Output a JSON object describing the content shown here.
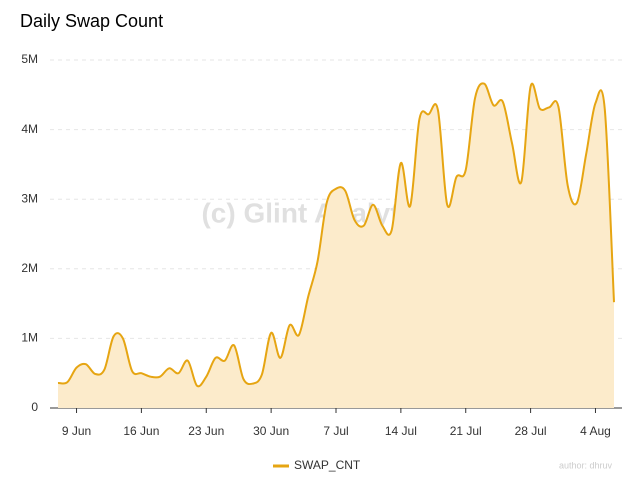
{
  "chart_data": {
    "type": "area",
    "title": "Daily Swap Count",
    "watermark": "(c) Glint Analytics",
    "author": "author: dhruv",
    "categories": [
      null,
      null,
      "9 Jun",
      null,
      null,
      null,
      null,
      null,
      null,
      "16 Jun",
      null,
      null,
      null,
      null,
      null,
      null,
      "23 Jun",
      null,
      null,
      null,
      null,
      null,
      null,
      "30 Jun",
      null,
      null,
      null,
      null,
      null,
      null,
      "7 Jul",
      null,
      null,
      null,
      null,
      null,
      null,
      "14 Jul",
      null,
      null,
      null,
      null,
      null,
      null,
      "21 Jul",
      null,
      null,
      null,
      null,
      null,
      null,
      "28 Jul",
      null,
      null,
      null,
      null,
      null,
      null,
      "4 Aug",
      null,
      null
    ],
    "series": [
      {
        "name": "SWAP_CNT",
        "color": "#e6a512",
        "fill": "#fcebcb",
        "values": [
          360000,
          370000,
          580000,
          630000,
          490000,
          550000,
          1030000,
          1000000,
          530000,
          500000,
          450000,
          450000,
          570000,
          500000,
          680000,
          320000,
          450000,
          720000,
          680000,
          900000,
          420000,
          350000,
          480000,
          1080000,
          720000,
          1190000,
          1050000,
          1600000,
          2100000,
          2950000,
          3150000,
          3120000,
          2700000,
          2620000,
          2920000,
          2620000,
          2550000,
          3520000,
          2900000,
          4150000,
          4220000,
          4280000,
          2920000,
          3320000,
          3420000,
          4450000,
          4660000,
          4350000,
          4400000,
          3800000,
          3250000,
          4620000,
          4300000,
          4320000,
          4330000,
          3200000,
          2950000,
          3650000,
          4380000,
          4300000,
          1520000
        ]
      }
    ],
    "ylim": [
      0,
      5000000
    ],
    "yticks": [
      0,
      {
        "value": 1000000,
        "label": "1M"
      },
      {
        "value": 2000000,
        "label": "2M"
      },
      {
        "value": 3000000,
        "label": "3M"
      },
      {
        "value": 4000000,
        "label": "4M"
      },
      {
        "value": 5000000,
        "label": "5M"
      }
    ],
    "grid": true,
    "legend": "bottom"
  }
}
